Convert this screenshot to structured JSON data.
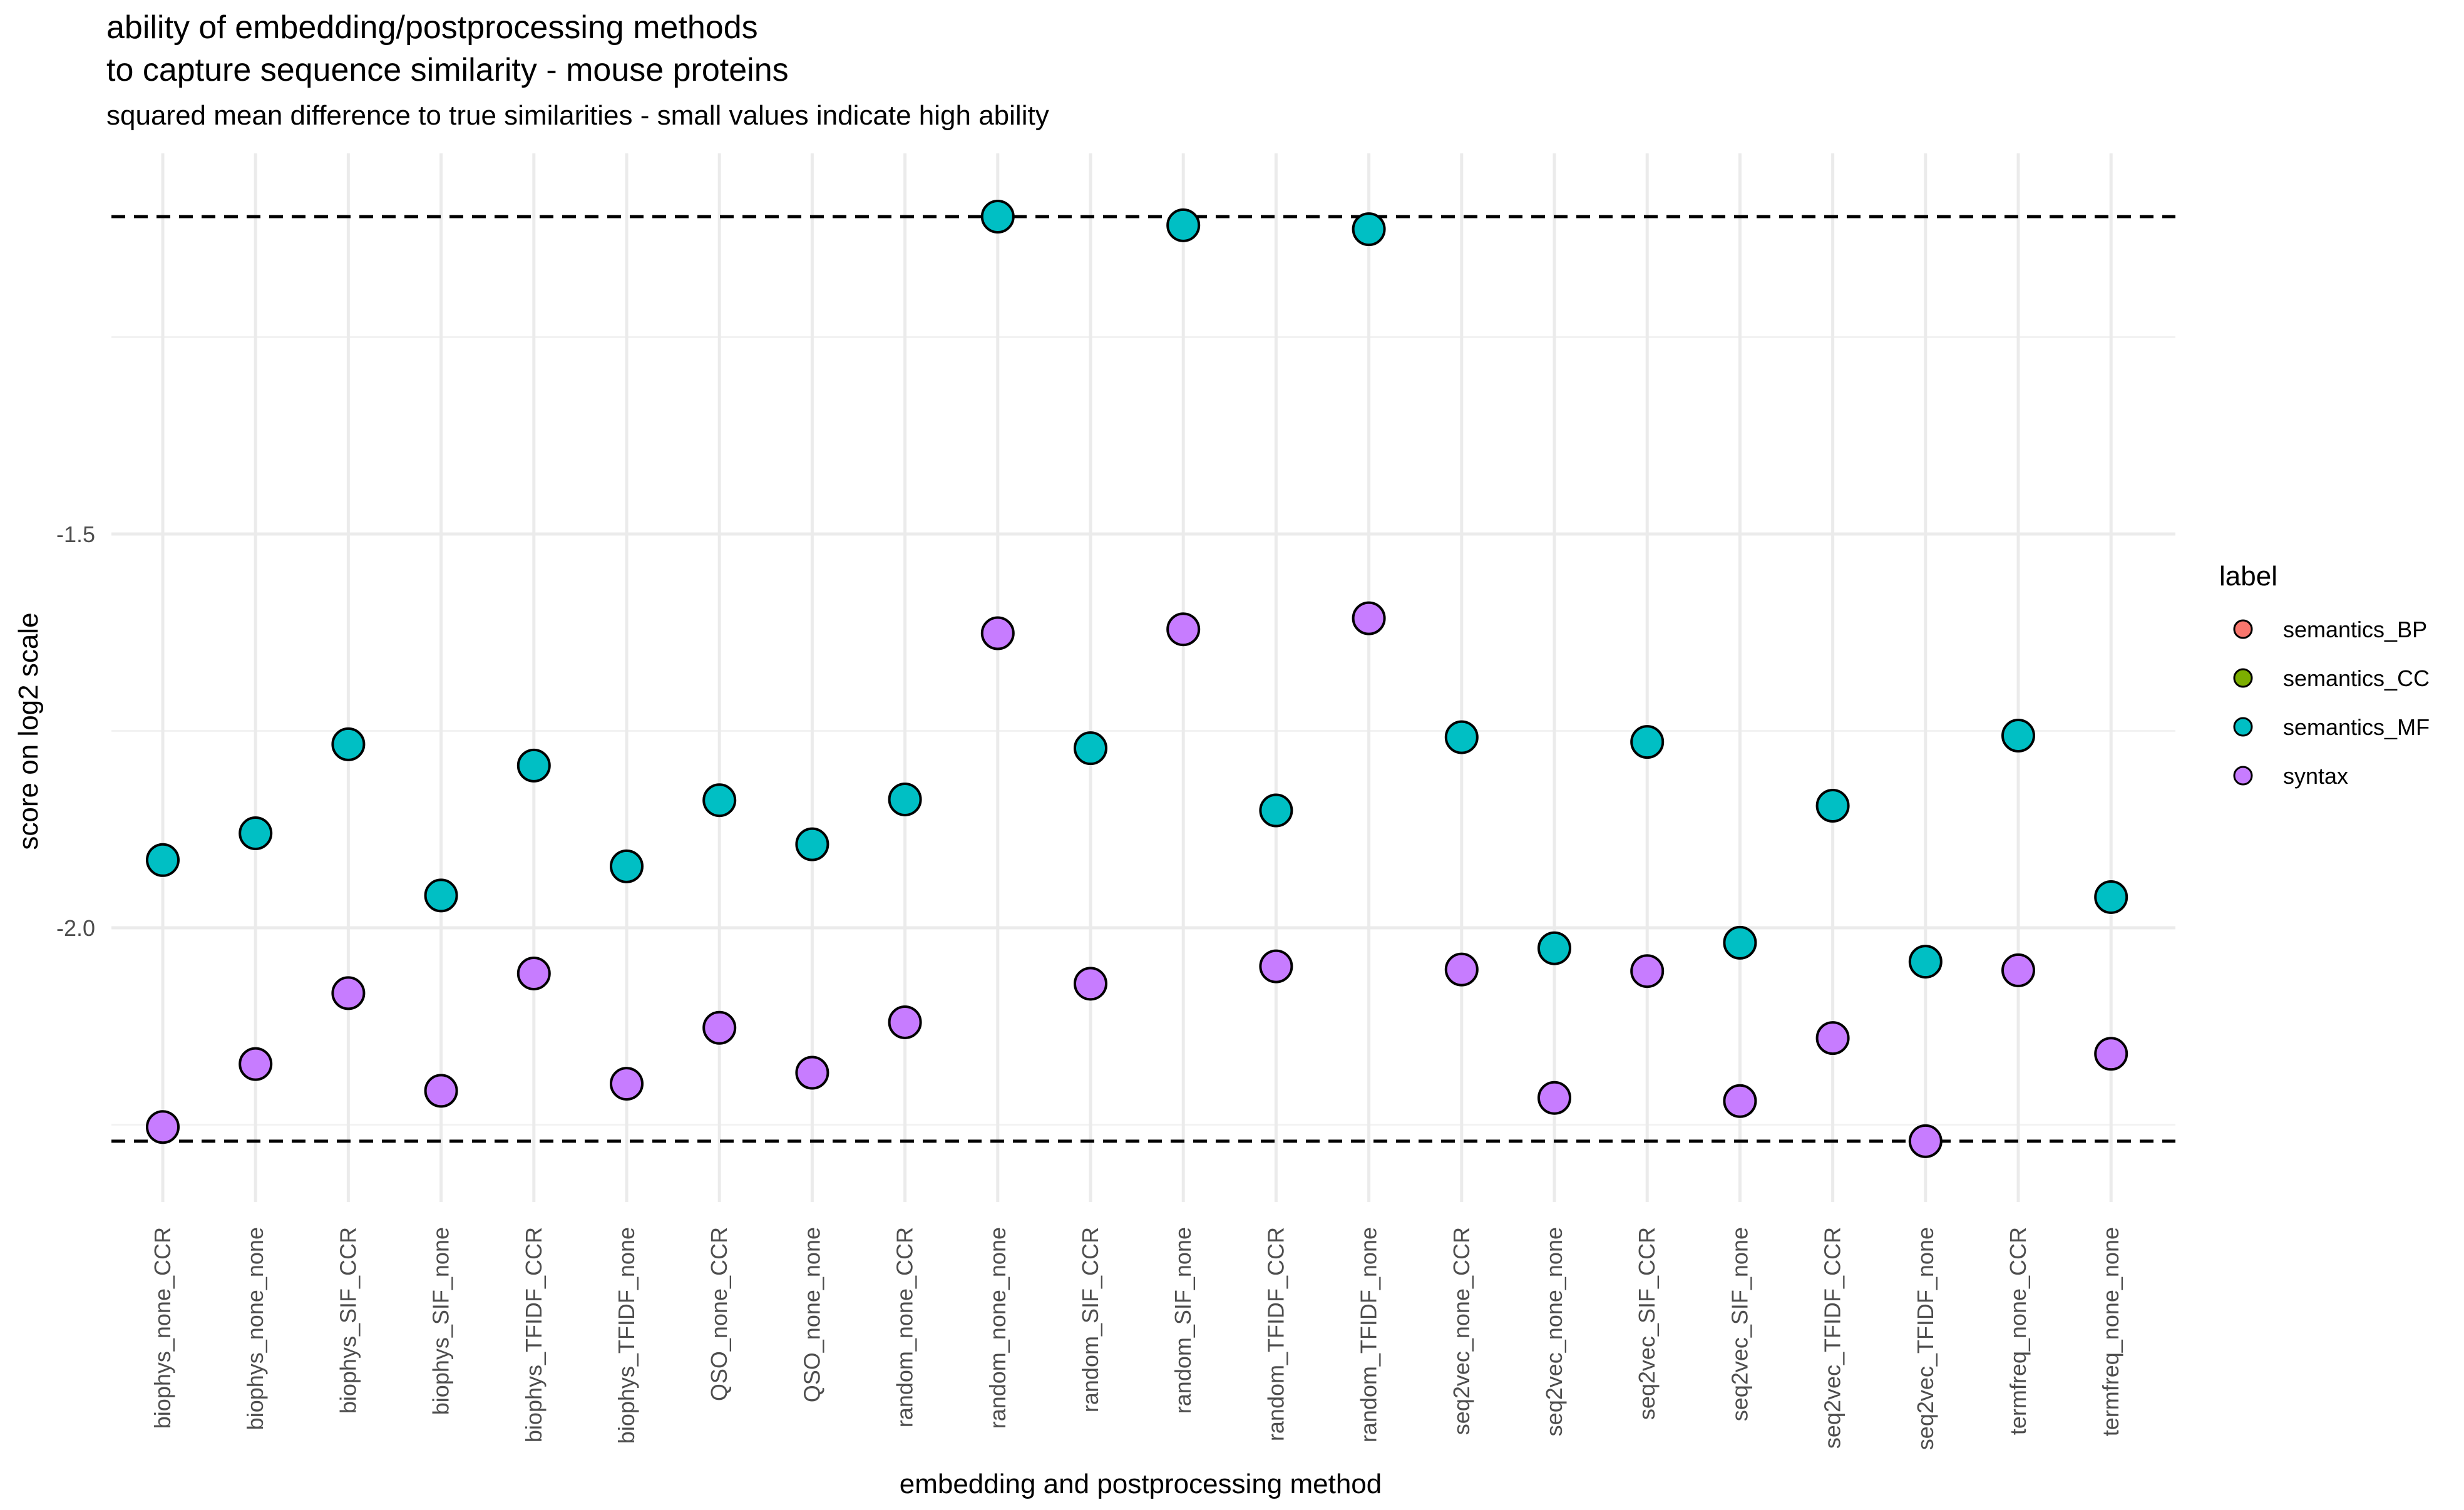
{
  "chart_data": {
    "type": "scatter",
    "title_lines": [
      "ability of embedding/postprocessing methods",
      "to capture sequence similarity - mouse proteins"
    ],
    "subtitle": "squared mean difference to true similarities - small values indicate high ability",
    "xlabel": "embedding and postprocessing method",
    "ylabel": "score on log2 scale",
    "y_scale": "log2",
    "ylim": [
      -2.35,
      -1.02
    ],
    "y_ticks": [
      -1.5,
      -2.0
    ],
    "y_tick_labels": [
      "-1.5",
      "-2.0"
    ],
    "grid": true,
    "categories": [
      "biophys_none_CCR",
      "biophys_none_none",
      "biophys_SIF_CCR",
      "biophys_SIF_none",
      "biophys_TFIDF_CCR",
      "biophys_TFIDF_none",
      "QSO_none_CCR",
      "QSO_none_none",
      "random_none_CCR",
      "random_none_none",
      "random_SIF_CCR",
      "random_SIF_none",
      "random_TFIDF_CCR",
      "random_TFIDF_none",
      "seq2vec_none_CCR",
      "seq2vec_none_none",
      "seq2vec_SIF_CCR",
      "seq2vec_SIF_none",
      "seq2vec_TFIDF_CCR",
      "seq2vec_TFIDF_none",
      "termfreq_none_CCR",
      "termfreq_none_none"
    ],
    "series": [
      {
        "name": "semantics_MF",
        "color": "#00BFC4",
        "values": [
          -1.914,
          -1.88,
          -1.767,
          -1.959,
          -1.794,
          -1.922,
          -1.838,
          -1.894,
          -1.837,
          -1.097,
          -1.772,
          -1.108,
          -1.851,
          -1.113,
          -1.758,
          -2.026,
          -1.764,
          -2.019,
          -1.845,
          -2.043,
          -1.756,
          -1.961
        ]
      },
      {
        "name": "syntax",
        "color": "#C77CFF",
        "values": [
          -2.253,
          -2.173,
          -2.083,
          -2.207,
          -2.058,
          -2.198,
          -2.127,
          -2.184,
          -2.12,
          -1.626,
          -2.071,
          -1.621,
          -2.049,
          -1.607,
          -2.053,
          -2.216,
          -2.055,
          -2.22,
          -2.14,
          -2.271,
          -2.054,
          -2.16
        ]
      }
    ],
    "hlines": [
      {
        "y": -1.097,
        "style": "dashed"
      },
      {
        "y": -2.271,
        "style": "dashed"
      }
    ],
    "legend": {
      "title": "label",
      "placement": "right",
      "entries": [
        {
          "name": "semantics_BP",
          "color": "#F8766D"
        },
        {
          "name": "semantics_CC",
          "color": "#7CAE00"
        },
        {
          "name": "semantics_MF",
          "color": "#00BFC4"
        },
        {
          "name": "syntax",
          "color": "#C77CFF"
        }
      ]
    }
  }
}
